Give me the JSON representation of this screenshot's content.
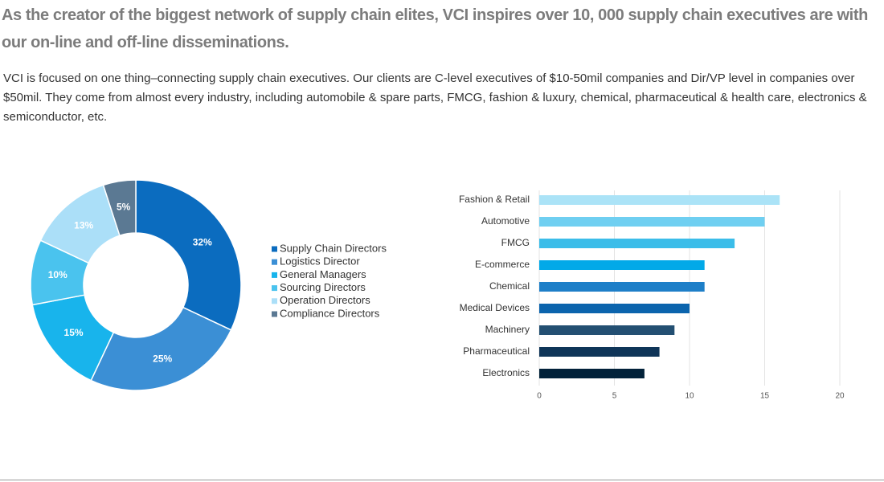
{
  "header": {
    "title": "As the creator of the biggest network of supply chain elites, VCI inspires over 10, 000 supply chain executives are with our on-line and off-line disseminations.",
    "text": "VCI is focused on one thing–connecting supply chain executives. Our clients are C-level executives of $10-50mil companies and Dir/VP level in companies over $50mil. They come from almost every industry, including automobile & spare parts, FMCG, fashion & luxury, chemical, pharmaceutical & health care, electronics & semiconductor, etc."
  },
  "chart_data": [
    {
      "type": "donut",
      "categories": [
        "Supply Chain Directors",
        "Logistics Director",
        "General Managers",
        "Sourcing Directors",
        "Operation Directors",
        "Compliance Directors"
      ],
      "values": [
        32,
        25,
        15,
        10,
        13,
        5
      ],
      "value_labels": [
        "32%",
        "25%",
        "15%",
        "10%",
        "13%",
        "5%"
      ],
      "colors": [
        "#0b6cbf",
        "#3b8fd5",
        "#18b4ec",
        "#4ac3ee",
        "#abdff8",
        "#5b7993"
      ]
    },
    {
      "type": "hbar",
      "categories": [
        "Fashion & Retail",
        "Automotive",
        "FMCG",
        "E-commerce",
        "Chemical",
        "Medical Devices",
        "Machinery",
        "Pharmaceutical",
        "Electronics"
      ],
      "values": [
        16,
        15,
        13,
        11,
        11,
        10,
        9,
        8,
        7
      ],
      "colors": [
        "#abe3f7",
        "#6fcff1",
        "#3bbde9",
        "#02a9e8",
        "#1e7fc8",
        "#0b64ad",
        "#234f72",
        "#0f3558",
        "#02223a"
      ],
      "xlim": [
        0,
        20
      ],
      "xticks": [
        0,
        5,
        10,
        15,
        20
      ],
      "grid": true
    }
  ]
}
